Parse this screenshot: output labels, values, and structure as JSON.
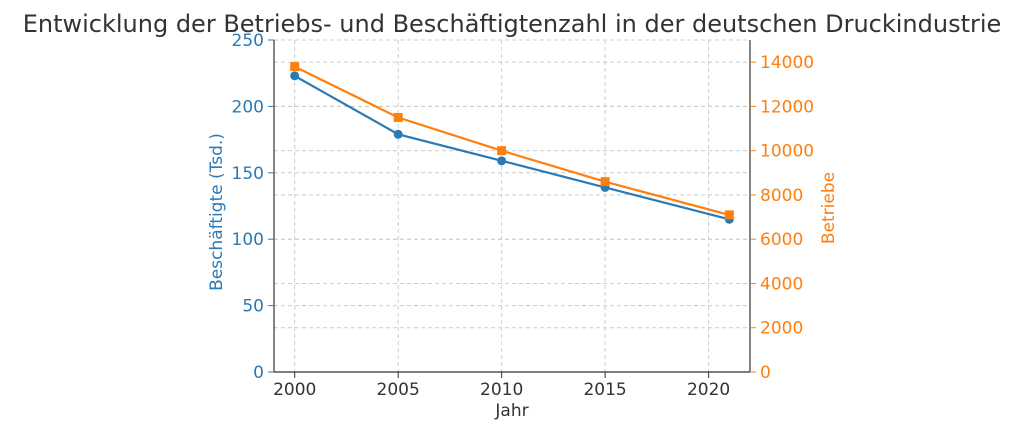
{
  "chart_data": {
    "type": "line",
    "title": "Entwicklung der Betriebs- und Beschäftigtenzahl in der deutschen Druckindustrie",
    "xlabel": "Jahr",
    "ylabel_left": "Beschäftigte (Tsd.)",
    "ylabel_right": "Betriebe",
    "x": [
      2000,
      2005,
      2010,
      2015,
      2021
    ],
    "xticks": [
      "2000",
      "2005",
      "2010",
      "2015",
      "2020"
    ],
    "xlim": [
      1999,
      2022
    ],
    "ylim_left": [
      0,
      250
    ],
    "yticks_left": [
      "0",
      "50",
      "100",
      "150",
      "200",
      "250"
    ],
    "ylim_right": [
      0,
      15000
    ],
    "yticks_right": [
      "0",
      "2000",
      "4000",
      "6000",
      "8000",
      "10000",
      "12000",
      "14000"
    ],
    "grid": true,
    "series": [
      {
        "name": "Beschäftigte (Tsd.)",
        "axis": "left",
        "marker": "circle",
        "color": "#2a7ab5",
        "values": [
          223,
          179,
          159,
          139,
          115
        ]
      },
      {
        "name": "Betriebe",
        "axis": "right",
        "marker": "square",
        "color": "#ff7f0e",
        "values": [
          13800,
          11500,
          10000,
          8600,
          7100
        ]
      }
    ]
  }
}
